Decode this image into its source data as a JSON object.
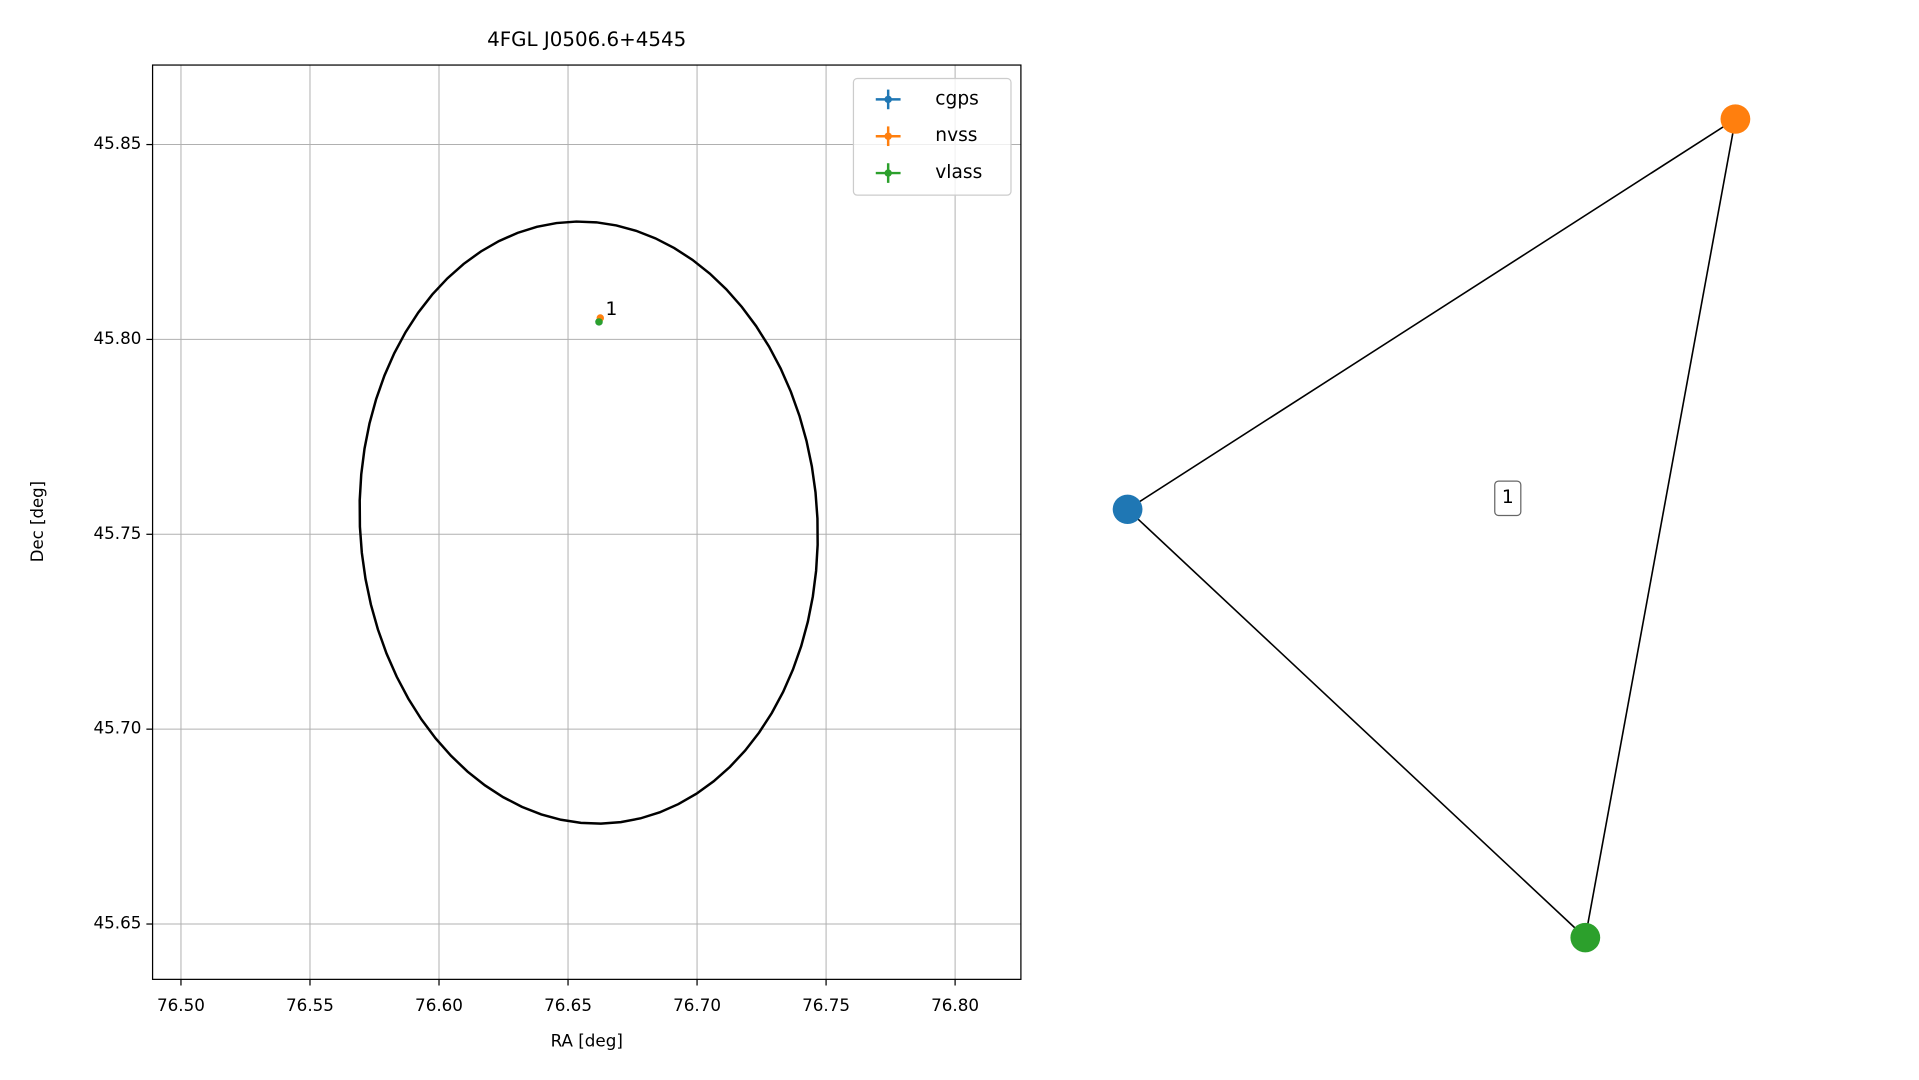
{
  "chart_data": [
    {
      "type": "scatter",
      "title": "4FGL J0506.6+4545",
      "xlabel": "RA [deg]",
      "ylabel": "Dec [deg]",
      "xlim": [
        76.489,
        76.8255
      ],
      "ylim": [
        45.6358,
        45.8704
      ],
      "xticks": [
        {
          "value": 76.5,
          "label": "76.50"
        },
        76.55,
        {
          "value": 76.6,
          "label": "76.60"
        },
        76.65,
        {
          "value": 76.7,
          "label": "76.70"
        },
        76.75,
        {
          "value": 76.8,
          "label": "76.80"
        }
      ],
      "yticks": [
        45.65,
        {
          "value": 45.7,
          "label": "45.70"
        },
        45.75,
        {
          "value": 45.8,
          "label": "45.80"
        },
        45.85
      ],
      "grid": true,
      "legend": "upper right",
      "series": [
        {
          "name": "cgps",
          "color": "#1f77b4",
          "x": [
            76.662
          ],
          "y": [
            45.8045
          ]
        },
        {
          "name": "nvss",
          "color": "#ff7f0e",
          "x": [
            76.6625
          ],
          "y": [
            45.8055
          ]
        },
        {
          "name": "vlass",
          "color": "#2ca02c",
          "x": [
            76.662
          ],
          "y": [
            45.8045
          ]
        }
      ],
      "ellipse": {
        "center": [
          76.658,
          45.753
        ],
        "width": 0.178,
        "height": 0.154,
        "angle": -8,
        "color": "#000000"
      },
      "annotations": [
        {
          "text": "1",
          "x": 76.6645,
          "y": 45.8075
        }
      ]
    },
    {
      "type": "graph",
      "nodes": [
        {
          "color": "#1f77b4"
        },
        {
          "color": "#ff7f0e"
        },
        {
          "color": "#2ca02c"
        }
      ],
      "label": "1"
    }
  ]
}
